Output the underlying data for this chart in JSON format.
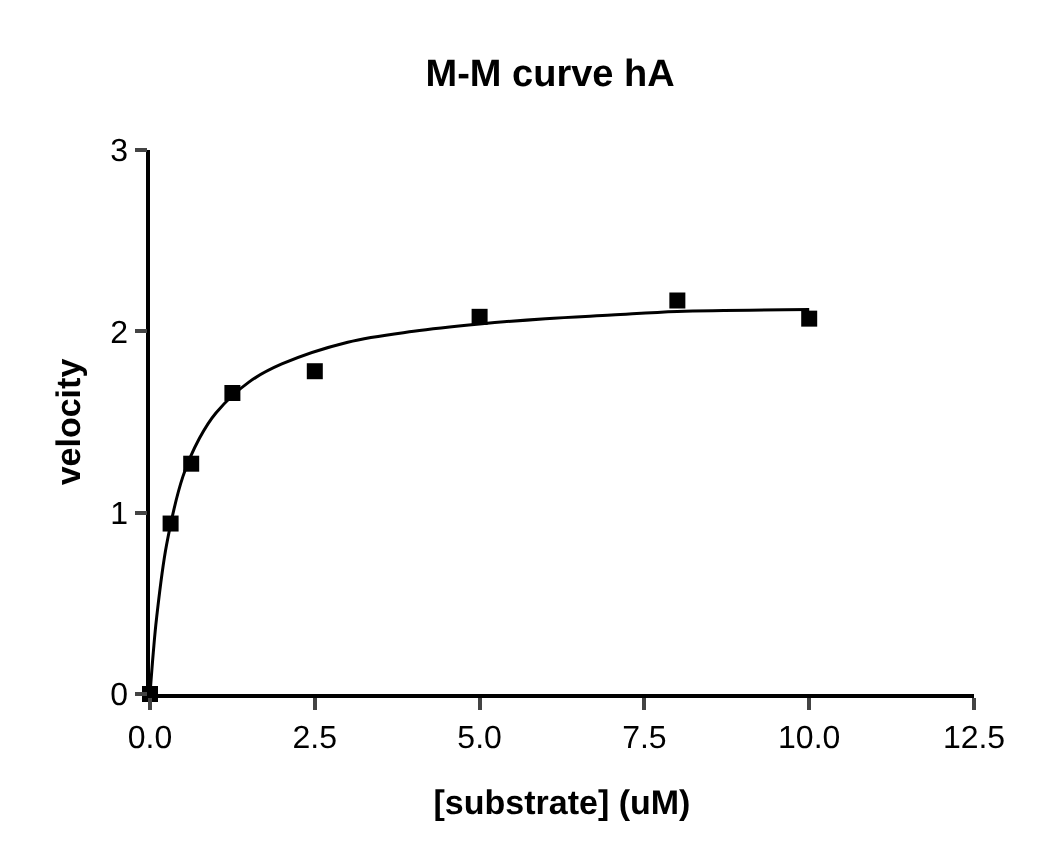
{
  "chart_data": {
    "type": "scatter",
    "title": "M-M curve hA",
    "xlabel": "[substrate] (uM)",
    "ylabel": "velocity",
    "series": [
      {
        "color": "#000000",
        "x": [
          0,
          0.3125,
          0.625,
          1.25,
          2.5,
          5,
          8,
          10
        ],
        "values": [
          0,
          0.94,
          1.27,
          1.66,
          1.78,
          2.08,
          2.17,
          2.07
        ]
      },
      {
        "type": "line",
        "marker": "none",
        "color": "#000000",
        "x": [
          0,
          0.05,
          0.1,
          0.25,
          0.5,
          0.75,
          1,
          1.5,
          2,
          3,
          4,
          5,
          6,
          7,
          8,
          10
        ],
        "values": [
          0,
          0.23,
          0.42,
          0.82,
          1.2,
          1.41,
          1.55,
          1.72,
          1.82,
          1.94,
          2.0,
          2.04,
          2.07,
          2.09,
          2.11,
          2.12
        ]
      }
    ],
    "xlim": [
      0,
      12.5
    ],
    "xticks": [
      {
        "value": 0,
        "label": "0.0"
      },
      2.5,
      {
        "value": 5,
        "label": "5.0"
      },
      7.5,
      {
        "value": 10,
        "label": "10.0"
      },
      12.5
    ],
    "ylim": [
      0,
      3
    ],
    "yticks": [
      0,
      1,
      2,
      3
    ],
    "grid": false,
    "marker": "square",
    "line_style": "solid"
  }
}
